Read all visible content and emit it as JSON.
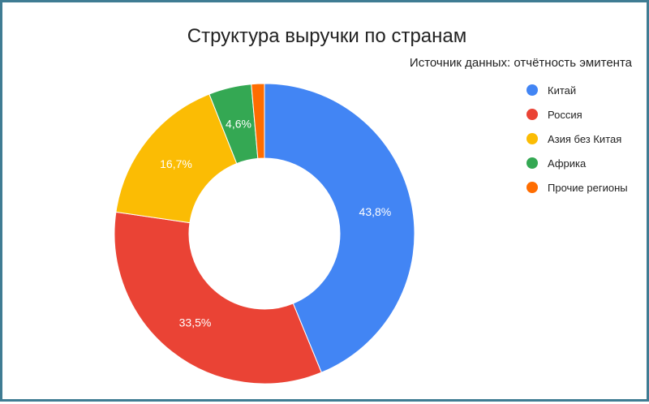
{
  "chart_data": {
    "type": "pie",
    "donut": true,
    "title": "Структура выручки по странам",
    "subtitle": "Источник данных: отчётность эмитента",
    "legend_position": "right",
    "categories": [
      "Китай",
      "Россия",
      "Азия без Китая",
      "Африка",
      "Прочие регионы"
    ],
    "values": [
      43.8,
      33.5,
      16.7,
      4.6,
      1.4
    ],
    "labels": [
      "43,8%",
      "33,5%",
      "16,7%",
      "4,6%",
      ""
    ],
    "colors": [
      "#4285f4",
      "#ea4335",
      "#fbbc04",
      "#34a853",
      "#ff6d01"
    ]
  }
}
